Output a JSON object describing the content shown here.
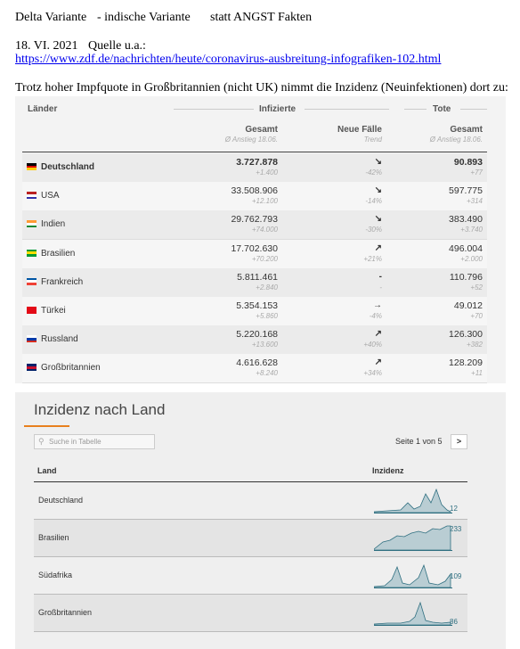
{
  "header": {
    "title_a": "Delta Variante",
    "title_b": "- indische Variante",
    "title_c": "statt ANGST Fakten",
    "date": "18. VI. 2021",
    "source_label": "Quelle  u.a.:",
    "link": "https://www.zdf.de/nachrichten/heute/coronavirus-ausbreitung-infografiken-102.html",
    "intro": "Trotz hoher Impfquote in Großbritannien (nicht UK)  nimmt die Inzidenz (Neuinfektionen) dort zu:"
  },
  "table": {
    "groups": [
      "Länder",
      "Infizierte",
      "Tote"
    ],
    "columns": {
      "total": "Gesamt",
      "total_sub": "Ø Anstieg 18.06.",
      "new": "Neue Fälle",
      "new_sub": "Trend",
      "deaths": "Gesamt",
      "deaths_sub": "Ø Anstieg 18.06."
    },
    "rows": [
      [
        "Deutschland",
        "3.727.878",
        "+1.400",
        "↘",
        "-42%",
        "90.893",
        "+77"
      ],
      [
        "USA",
        "33.508.906",
        "+12.100",
        "↘",
        "-14%",
        "597.775",
        "+314"
      ],
      [
        "Indien",
        "29.762.793",
        "+74.000",
        "↘",
        "-30%",
        "383.490",
        "+3.740"
      ],
      [
        "Brasilien",
        "17.702.630",
        "+70.200",
        "↗",
        "+21%",
        "496.004",
        "+2.000"
      ],
      [
        "Frankreich",
        "5.811.461",
        "+2.840",
        "-",
        "-",
        "110.796",
        "+52"
      ],
      [
        "Türkei",
        "5.354.153",
        "+5.860",
        "→",
        "-4%",
        "49.012",
        "+70"
      ],
      [
        "Russland",
        "5.220.168",
        "+13.600",
        "↗",
        "+40%",
        "126.300",
        "+382"
      ],
      [
        "Großbritannien",
        "4.616.628",
        "+8.240",
        "↗",
        "+34%",
        "128.209",
        "+11"
      ]
    ]
  },
  "incidence": {
    "title": "Inzidenz nach Land",
    "search": "Suche in Tabelle",
    "pagination": "Seite 1 von 5",
    "next": ">",
    "col_land": "Land",
    "col_inz": "Inzidenz",
    "rows": [
      [
        "Deutschland",
        "12"
      ],
      [
        "Brasilien",
        "233"
      ],
      [
        "Südafrika",
        "109"
      ],
      [
        "Großbritannien",
        "86"
      ]
    ]
  }
}
